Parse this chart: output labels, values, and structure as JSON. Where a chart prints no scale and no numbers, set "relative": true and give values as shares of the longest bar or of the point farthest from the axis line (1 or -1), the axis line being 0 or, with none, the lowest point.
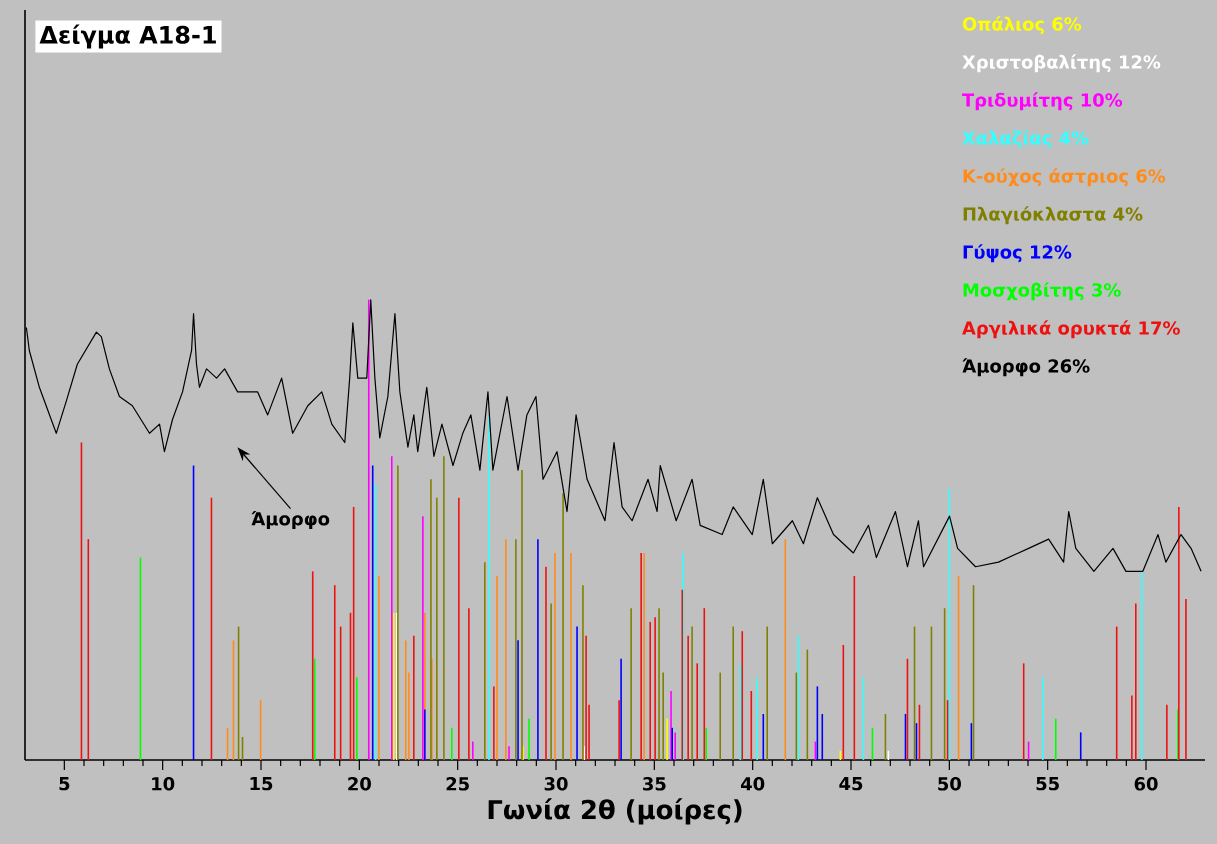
{
  "chart_data": {
    "type": "bar",
    "title": "Δείγμα A18-1",
    "xlabel": "Γωνία 2θ (μοίρες)",
    "relative": true,
    "legend": "top right",
    "xlim": [
      3,
      63
    ],
    "xticks": [
      5,
      10,
      15,
      20,
      25,
      30,
      35,
      40,
      45,
      50,
      55,
      60
    ],
    "annotations": [
      "Άμορφο"
    ],
    "series": [
      {
        "name": "Οπάλιος 6%",
        "color": "#ffff00",
        "x": [
          21.75,
          28.32,
          35.65,
          44.46
        ],
        "values": [
          0.32,
          0.03,
          0.09,
          0.02
        ]
      },
      {
        "name": "Χριστοβαλίτης 12%",
        "color": "#ffffff",
        "x": [
          21.9,
          31.45,
          46.9
        ],
        "values": [
          0.32,
          0.03,
          0.02
        ]
      },
      {
        "name": "Τριδυμίτης 10%",
        "color": "#ff00ff",
        "x": [
          20.48,
          21.65,
          23.23,
          25.77,
          27.61,
          35.85,
          36.06,
          43.19,
          54.03
        ],
        "values": [
          1.0,
          0.66,
          0.53,
          0.04,
          0.03,
          0.15,
          0.06,
          0.04,
          0.04
        ]
      },
      {
        "name": "Χαλαζίας 4%",
        "color": "#33ffff",
        "x": [
          20.83,
          26.59,
          36.47,
          39.37,
          40.23,
          42.32,
          45.63,
          50.01,
          54.75,
          59.79
        ],
        "values": [
          0.6,
          0.75,
          0.45,
          0.21,
          0.18,
          0.27,
          0.18,
          0.59,
          0.18,
          0.41
        ]
      },
      {
        "name": "Κ-ούχος άστριος 6%",
        "color": "#ff8c1a",
        "x": [
          13.3,
          13.6,
          14.98,
          20.99,
          22.36,
          22.52,
          23.33,
          23.69,
          27.0,
          27.45,
          29.95,
          30.76,
          34.48,
          41.66,
          50.47
        ],
        "values": [
          0.07,
          0.26,
          0.13,
          0.4,
          0.26,
          0.19,
          0.32,
          0.22,
          0.4,
          0.48,
          0.45,
          0.45,
          0.45,
          0.48,
          0.4
        ]
      },
      {
        "name": "Πλαγιόκλαστα 4%",
        "color": "#808000",
        "x": [
          13.86,
          14.06,
          21.96,
          23.64,
          23.94,
          24.3,
          26.38,
          27.96,
          28.27,
          29.75,
          30.36,
          31.37,
          33.82,
          35.24,
          35.45,
          36.92,
          38.35,
          39.01,
          40.74,
          42.22,
          42.78,
          46.75,
          48.23,
          49.09,
          49.76,
          51.23
        ],
        "values": [
          0.29,
          0.05,
          0.64,
          0.61,
          0.57,
          0.66,
          0.43,
          0.48,
          0.63,
          0.34,
          0.58,
          0.38,
          0.33,
          0.33,
          0.19,
          0.29,
          0.19,
          0.29,
          0.29,
          0.19,
          0.24,
          0.1,
          0.29,
          0.29,
          0.33,
          0.38
        ]
      },
      {
        "name": "Γύψος 12%",
        "color": "#0000ff",
        "x": [
          11.57,
          20.68,
          23.33,
          28.07,
          29.08,
          31.07,
          33.31,
          35.91,
          40.54,
          43.29,
          43.54,
          47.77,
          48.33,
          51.12,
          56.68
        ],
        "values": [
          0.64,
          0.64,
          0.11,
          0.26,
          0.48,
          0.29,
          0.22,
          0.07,
          0.1,
          0.16,
          0.1,
          0.1,
          0.08,
          0.08,
          0.06
        ]
      },
      {
        "name": "Μοσχοβίτης 3%",
        "color": "#00ff00",
        "x": [
          8.87,
          17.73,
          19.87,
          24.7,
          28.63,
          37.64,
          46.09,
          55.41,
          61.62
        ],
        "values": [
          0.44,
          0.22,
          0.18,
          0.07,
          0.09,
          0.07,
          0.07,
          0.09,
          0.11
        ]
      },
      {
        "name": "Αργιλικά ορυκτά 17%",
        "color": "#ee1111",
        "x": [
          5.87,
          6.22,
          12.48,
          17.63,
          18.75,
          19.05,
          19.55,
          19.71,
          22.77,
          25.06,
          25.57,
          26.84,
          29.49,
          31.53,
          31.68,
          33.21,
          34.33,
          34.79,
          35.04,
          36.42,
          36.72,
          37.18,
          37.54,
          39.47,
          39.93,
          44.61,
          45.17,
          47.87,
          48.48,
          49.91,
          53.78,
          58.51,
          59.28,
          59.48,
          61.06,
          61.67,
          62.03
        ],
        "values": [
          0.69,
          0.48,
          0.57,
          0.41,
          0.38,
          0.29,
          0.32,
          0.55,
          0.27,
          0.57,
          0.33,
          0.16,
          0.42,
          0.27,
          0.12,
          0.13,
          0.45,
          0.3,
          0.31,
          0.37,
          0.27,
          0.21,
          0.33,
          0.28,
          0.15,
          0.25,
          0.4,
          0.22,
          0.12,
          0.13,
          0.21,
          0.29,
          0.14,
          0.34,
          0.12,
          0.55,
          0.35
        ]
      },
      {
        "name": "Άμορφο 26%",
        "color": "#000000",
        "type": "line",
        "x": [
          3.07,
          3.22,
          3.73,
          4.59,
          5.1,
          5.66,
          6.63,
          6.88,
          7.29,
          7.8,
          8.46,
          9.33,
          9.84,
          10.09,
          10.5,
          11.01,
          11.47,
          11.57,
          11.72,
          11.87,
          12.23,
          12.74,
          13.15,
          13.81,
          14.83,
          15.34,
          16.05,
          16.61,
          17.38,
          18.09,
          18.6,
          19.26,
          19.51,
          19.67,
          19.92,
          20.38,
          20.58,
          20.79,
          21.04,
          21.45,
          21.81,
          22.06,
          22.47,
          22.77,
          22.97,
          23.43,
          23.79,
          24.2,
          24.76,
          25.26,
          25.67,
          26.13,
          26.54,
          26.79,
          27.51,
          28.07,
          28.52,
          28.98,
          29.34,
          30.05,
          30.56,
          31.02,
          31.58,
          32.49,
          32.95,
          33.36,
          33.87,
          34.68,
          35.14,
          35.3,
          36.11,
          36.92,
          37.33,
          38.45,
          39.01,
          39.98,
          40.54,
          41.0,
          42.02,
          42.58,
          43.29,
          44.11,
          45.12,
          45.89,
          46.29,
          47.26,
          47.87,
          48.43,
          48.69,
          50.01,
          50.42,
          51.33,
          52.5,
          54.03,
          55.05,
          55.81,
          56.07,
          56.43,
          57.35,
          58.32,
          58.98,
          59.84,
          60.61,
          61.01,
          61.78,
          62.29,
          62.8
        ],
        "values": [
          0.94,
          0.89,
          0.81,
          0.71,
          0.78,
          0.86,
          0.93,
          0.92,
          0.85,
          0.79,
          0.77,
          0.71,
          0.73,
          0.67,
          0.74,
          0.8,
          0.89,
          0.97,
          0.86,
          0.81,
          0.85,
          0.83,
          0.85,
          0.8,
          0.8,
          0.75,
          0.83,
          0.71,
          0.77,
          0.8,
          0.73,
          0.69,
          0.83,
          0.95,
          0.83,
          0.83,
          1.0,
          0.83,
          0.7,
          0.79,
          0.97,
          0.8,
          0.68,
          0.75,
          0.67,
          0.81,
          0.66,
          0.73,
          0.64,
          0.71,
          0.75,
          0.63,
          0.8,
          0.63,
          0.79,
          0.63,
          0.75,
          0.79,
          0.61,
          0.67,
          0.54,
          0.75,
          0.61,
          0.52,
          0.69,
          0.55,
          0.52,
          0.61,
          0.54,
          0.64,
          0.52,
          0.61,
          0.51,
          0.49,
          0.55,
          0.49,
          0.61,
          0.47,
          0.52,
          0.47,
          0.57,
          0.49,
          0.45,
          0.51,
          0.44,
          0.54,
          0.42,
          0.52,
          0.42,
          0.53,
          0.46,
          0.42,
          0.43,
          0.46,
          0.48,
          0.43,
          0.54,
          0.46,
          0.41,
          0.46,
          0.41,
          0.41,
          0.49,
          0.43,
          0.49,
          0.46,
          0.41
        ]
      }
    ]
  }
}
